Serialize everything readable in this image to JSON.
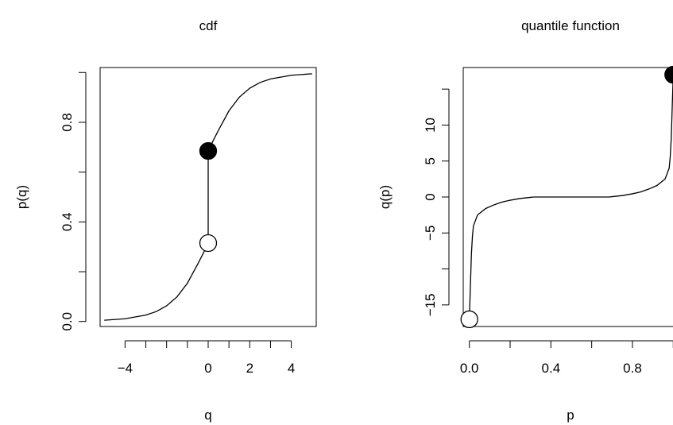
{
  "chart_data": [
    {
      "type": "line",
      "title": "cdf",
      "xlabel": "q",
      "ylabel": "p(q)",
      "xlim": [
        -5.2,
        5.2
      ],
      "ylim": [
        -0.02,
        1.02
      ],
      "x_ticks": [
        -4,
        -3,
        -2,
        -1,
        0,
        1,
        2,
        3,
        4
      ],
      "x_tick_labels": [
        "−4",
        "",
        "",
        "",
        "0",
        "",
        "2",
        "",
        "4"
      ],
      "y_ticks": [
        0.0,
        0.2,
        0.4,
        0.6,
        0.8,
        1.0
      ],
      "y_tick_labels": [
        "0.0",
        "",
        "0.4",
        "",
        "0.8",
        ""
      ],
      "series": [
        {
          "x": [
            -5,
            -4,
            -3,
            -2.5,
            -2,
            -1.5,
            -1,
            -0.5,
            -0.2,
            0
          ],
          "y": [
            0.005,
            0.011,
            0.026,
            0.04,
            0.063,
            0.099,
            0.154,
            0.231,
            0.28,
            0.315
          ]
        },
        {
          "x": [
            0,
            0.2,
            0.5,
            1,
            1.5,
            2,
            2.5,
            3,
            4,
            5
          ],
          "y": [
            0.685,
            0.72,
            0.769,
            0.846,
            0.901,
            0.937,
            0.96,
            0.974,
            0.989,
            0.995
          ]
        }
      ],
      "jump": {
        "x": 0,
        "y_from": 0.315,
        "y_to": 0.685
      },
      "points": [
        {
          "x": 0,
          "y": 0.685,
          "filled": true
        },
        {
          "x": 0,
          "y": 0.315,
          "filled": false
        }
      ]
    },
    {
      "type": "line",
      "title": "quantile function",
      "xlabel": "p",
      "ylabel": "q(p)",
      "xlim": [
        -0.03,
        1.03
      ],
      "ylim": [
        -18,
        18
      ],
      "x_ticks": [
        0.0,
        0.2,
        0.4,
        0.6,
        0.8,
        1.0
      ],
      "x_tick_labels": [
        "0.0",
        "",
        "0.4",
        "",
        "0.8",
        ""
      ],
      "y_ticks": [
        -15,
        -10,
        -5,
        0,
        5,
        10,
        15
      ],
      "y_tick_labels": [
        "−15",
        "",
        "−5",
        "0",
        "5",
        "10",
        ""
      ],
      "series": [
        {
          "x": [
            0.0,
            0.005,
            0.01,
            0.015,
            0.02,
            0.04,
            0.08,
            0.12,
            0.16,
            0.2,
            0.25,
            0.3,
            0.315,
            0.685,
            0.7,
            0.75,
            0.8,
            0.84,
            0.88,
            0.92,
            0.96,
            0.98,
            0.985,
            0.99,
            0.995,
            1.0
          ],
          "y": [
            -17,
            -12.5,
            -8,
            -5.5,
            -4.0,
            -2.5,
            -1.6,
            -1.1,
            -0.7,
            -0.45,
            -0.2,
            -0.05,
            0.0,
            0.0,
            0.05,
            0.2,
            0.45,
            0.7,
            1.1,
            1.6,
            2.5,
            4.0,
            5.5,
            8,
            12.5,
            17
          ]
        }
      ],
      "points": [
        {
          "x": 1.0,
          "y": 17,
          "filled": true
        },
        {
          "x": 0.0,
          "y": -17,
          "filled": false
        }
      ]
    }
  ]
}
